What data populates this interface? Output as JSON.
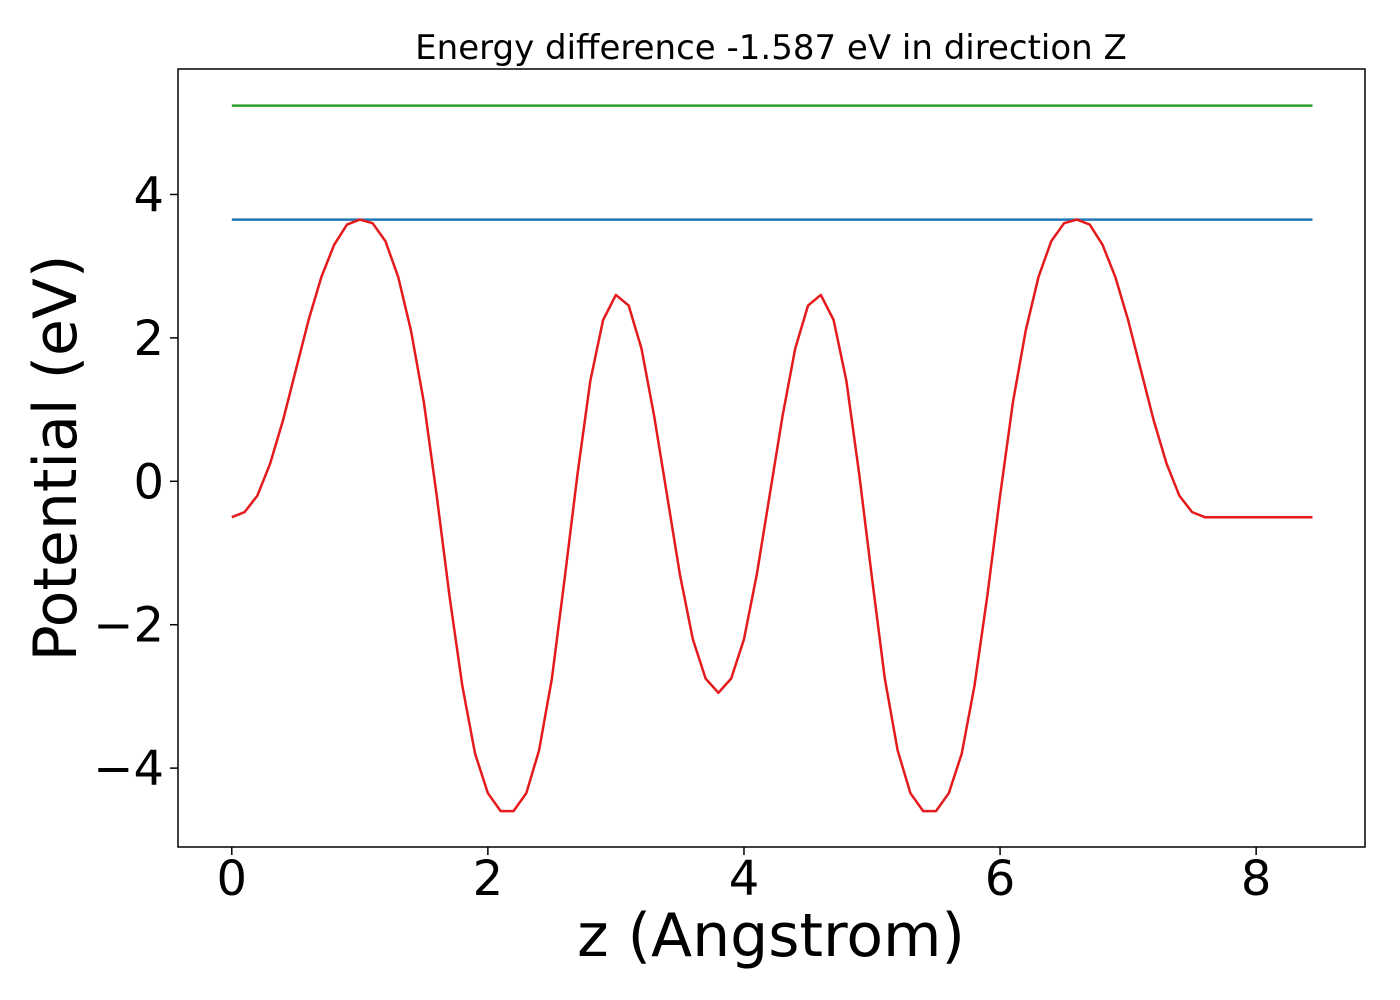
{
  "chart_data": {
    "type": "line",
    "title": "Energy difference -1.587 eV in direction Z",
    "xlabel": "z (Angstrom)",
    "ylabel": "Potential (eV)",
    "xlim": [
      -0.42,
      8.85
    ],
    "ylim": [
      -5.1,
      5.75
    ],
    "x_ticks": [
      0,
      2,
      4,
      6,
      8
    ],
    "x_tick_labels": [
      "0",
      "2",
      "4",
      "6",
      "8"
    ],
    "y_ticks": [
      -4,
      -2,
      0,
      2,
      4
    ],
    "y_tick_labels": [
      "−4",
      "−2",
      "0",
      "2",
      "4"
    ],
    "grid": false,
    "series": [
      {
        "color": "#1f77b4",
        "x": [
          0,
          8.44
        ],
        "values": [
          3.65,
          3.65
        ]
      },
      {
        "color": "#2ca02c",
        "x": [
          0,
          8.44
        ],
        "values": [
          5.24,
          5.24
        ]
      },
      {
        "color": "#e41a1c",
        "x": [
          0,
          0.1,
          0.2,
          0.3,
          0.4,
          0.5,
          0.6,
          0.7,
          0.8,
          0.9,
          1.0,
          1.1,
          1.2,
          1.3,
          1.4,
          1.5,
          1.6,
          1.7,
          1.8,
          1.9,
          2.0,
          2.1,
          2.2,
          2.3,
          2.4,
          2.5,
          2.6,
          2.7,
          2.8,
          2.9,
          3.0,
          3.1,
          3.2,
          3.3,
          3.4,
          3.5,
          3.6,
          3.7,
          3.8,
          3.9,
          4.0,
          4.1,
          4.2,
          4.3,
          4.4,
          4.5,
          4.6,
          4.7,
          4.8,
          4.9,
          5.0,
          5.1,
          5.2,
          5.3,
          5.4,
          5.5,
          5.6,
          5.7,
          5.8,
          5.9,
          6.0,
          6.1,
          6.2,
          6.3,
          6.4,
          6.5,
          6.6,
          6.7,
          6.8,
          6.9,
          7.0,
          7.1,
          7.2,
          7.3,
          7.4,
          7.5,
          7.6,
          7.7,
          7.8,
          7.9,
          8.0,
          8.1,
          8.2,
          8.3,
          8.44
        ],
        "values": [
          -0.5,
          -0.43,
          -0.2,
          0.25,
          0.85,
          1.55,
          2.25,
          2.85,
          3.3,
          3.58,
          3.65,
          3.6,
          3.35,
          2.85,
          2.1,
          1.1,
          -0.2,
          -1.6,
          -2.85,
          -3.8,
          -4.35,
          -4.6,
          -4.6,
          -4.35,
          -3.75,
          -2.75,
          -1.35,
          0.1,
          1.4,
          2.25,
          2.6,
          2.45,
          1.85,
          0.9,
          -0.2,
          -1.3,
          -2.2,
          -2.75,
          -2.95,
          -2.75,
          -2.2,
          -1.3,
          -0.2,
          0.9,
          1.85,
          2.45,
          2.6,
          2.25,
          1.4,
          0.1,
          -1.35,
          -2.75,
          -3.75,
          -4.35,
          -4.6,
          -4.6,
          -4.35,
          -3.8,
          -2.85,
          -1.6,
          -0.2,
          1.1,
          2.1,
          2.85,
          3.35,
          3.6,
          3.65,
          3.58,
          3.3,
          2.85,
          2.25,
          1.55,
          0.85,
          0.25,
          -0.2,
          -0.43,
          -0.5,
          -0.5,
          -0.5,
          -0.5,
          -0.5,
          -0.5,
          -0.5,
          -0.5,
          -0.5
        ]
      }
    ]
  }
}
